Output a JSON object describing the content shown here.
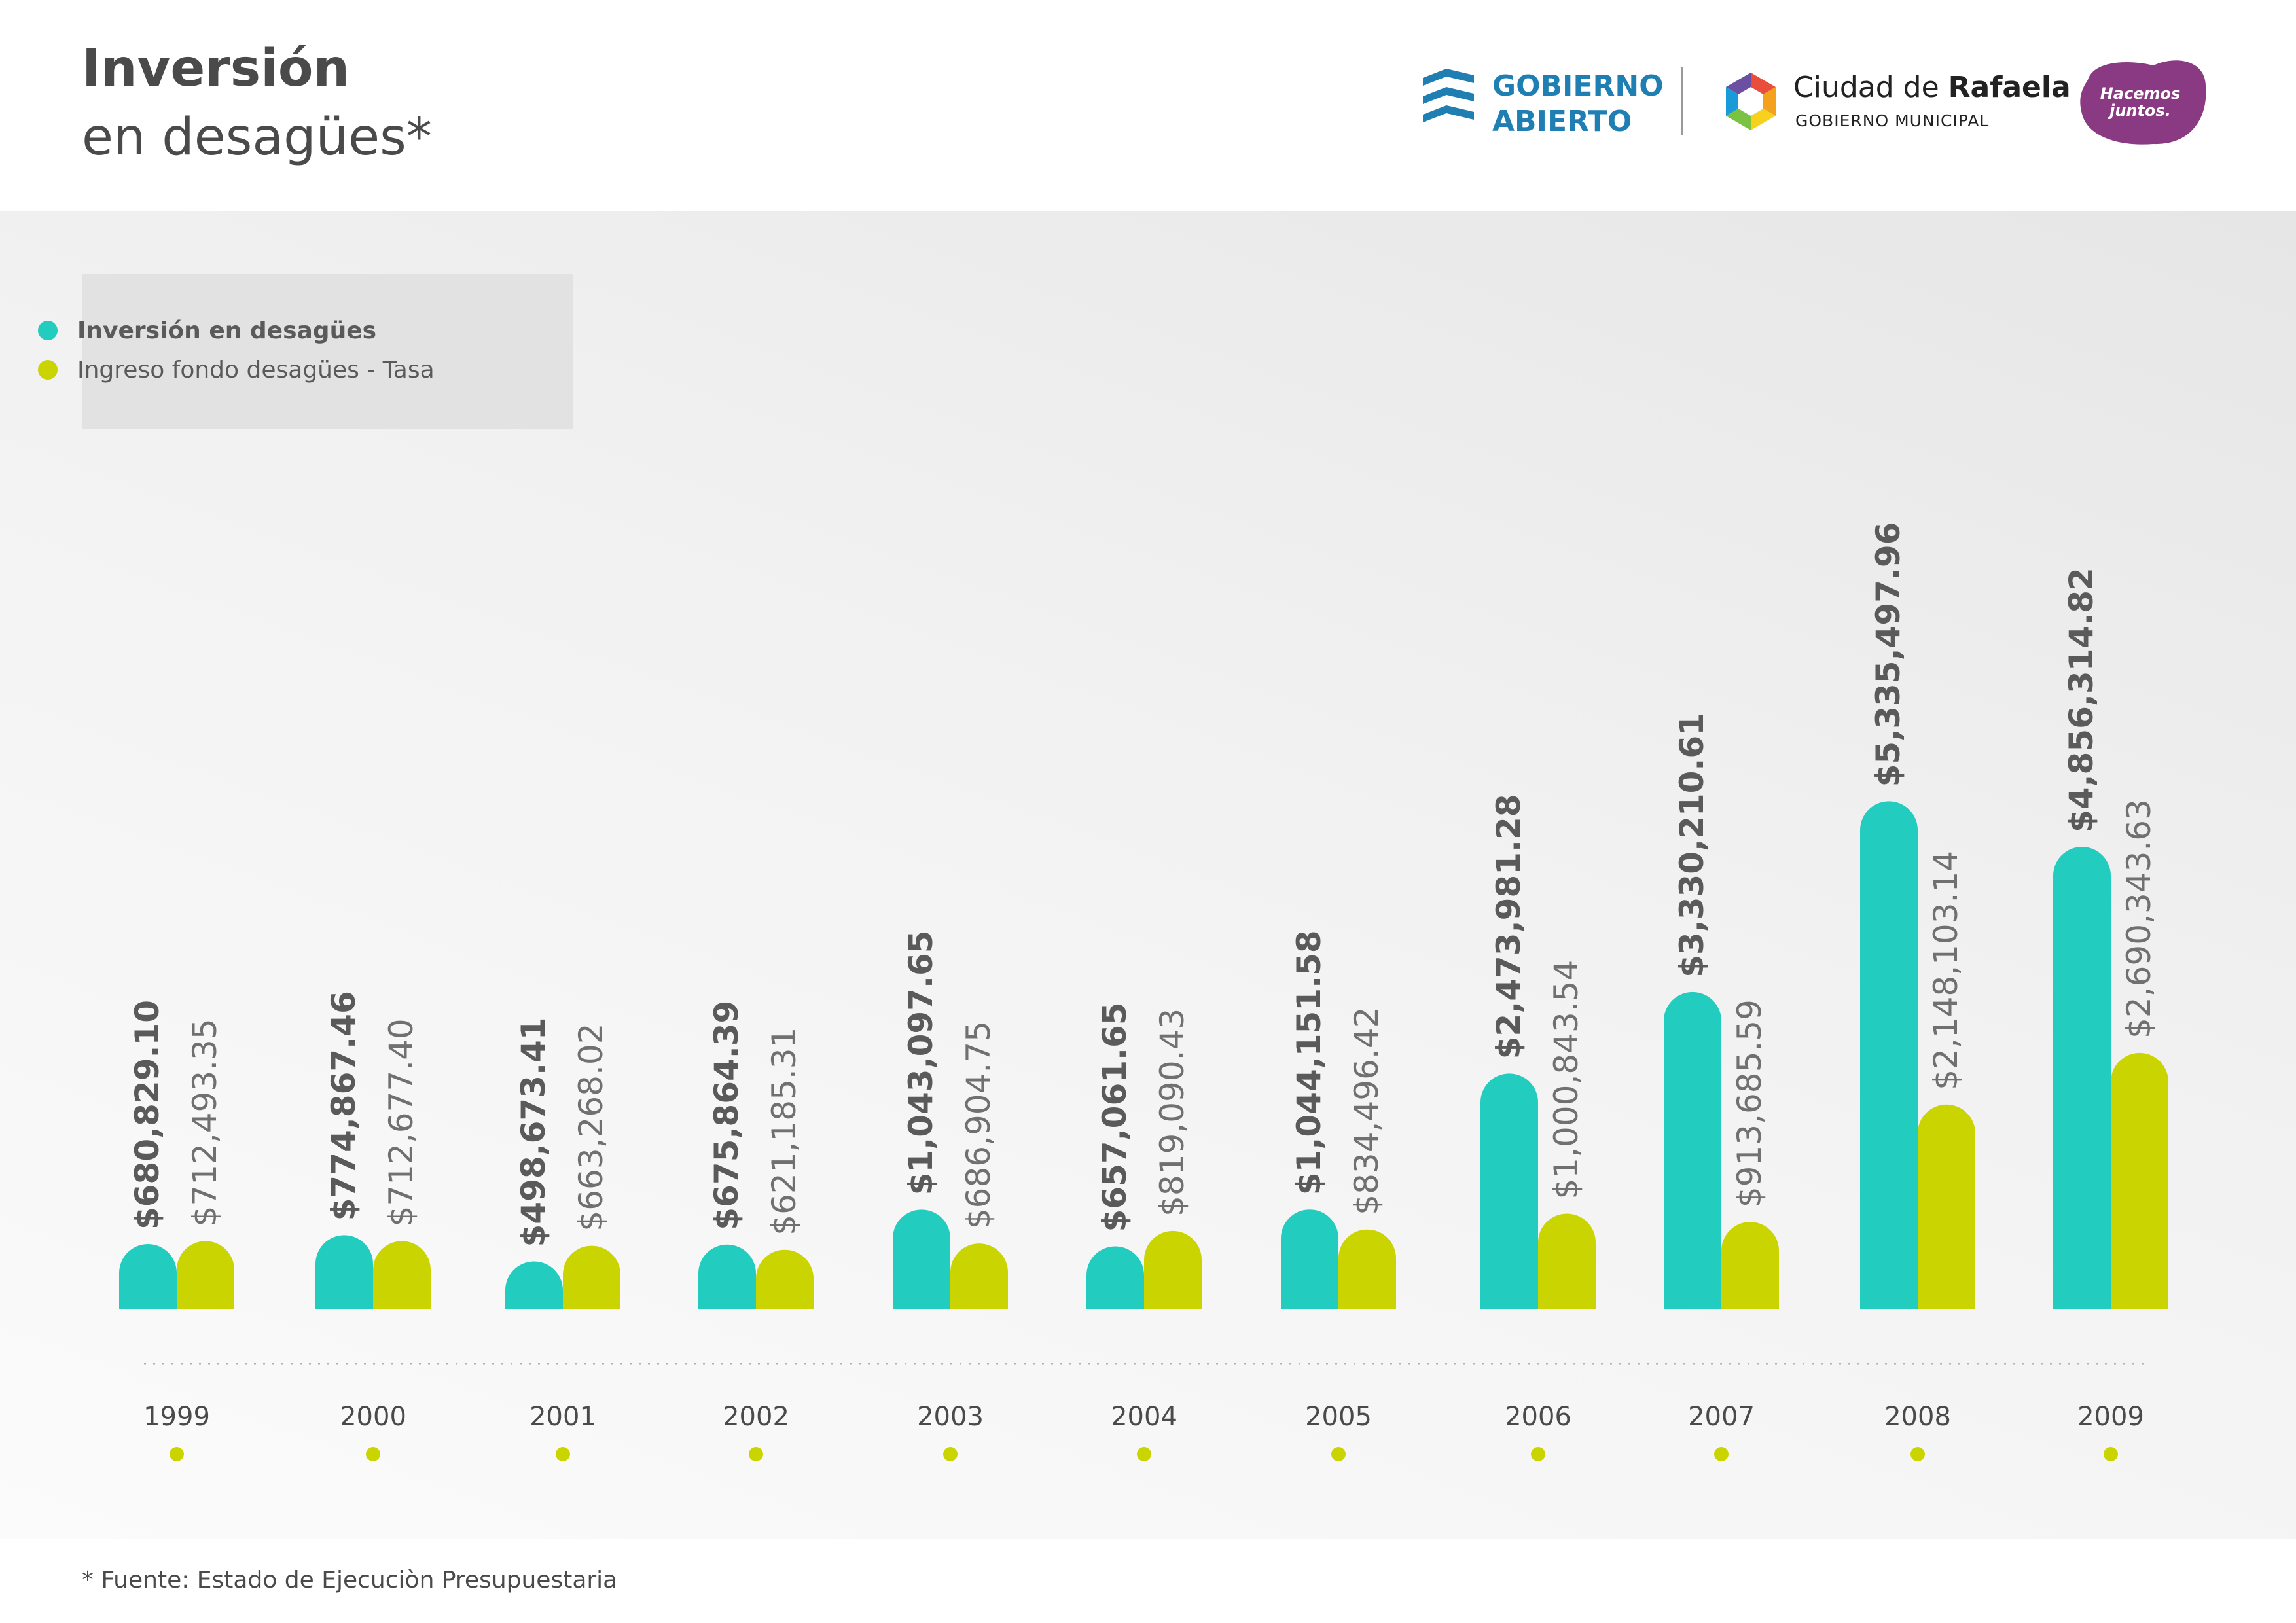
{
  "header": {
    "title_line1": "Inversión",
    "title_line2": "en desagües*"
  },
  "logos": {
    "gobierno_abierto": {
      "line1": "GOBIERNO",
      "line2": "ABIERTO",
      "icon": "stacked-chevrons-icon"
    },
    "ciudad": {
      "name_regular": "Ciudad de ",
      "name_bold": "Rafaela",
      "subtitle": "GOBIERNO MUNICIPAL",
      "icon": "hexagon-logo-icon"
    },
    "hacemos": {
      "line1": "Hacemos",
      "line2": "juntos."
    }
  },
  "colors": {
    "inversion": "#22ccbf",
    "ingreso": "#c9d400",
    "year_dot": "#c9d400",
    "brand_blue": "#1f7fb3",
    "brand_purple": "#8a3a82"
  },
  "legend": [
    {
      "label": "Inversión en desagües",
      "color": "#22ccbf"
    },
    {
      "label": "Ingreso fondo desagües - Tasa",
      "color": "#c9d400"
    }
  ],
  "footnote": "* Fuente: Estado de Ejecuciòn Presupuestaria",
  "chart_data": {
    "type": "bar",
    "title": "Inversión en desagües*",
    "categories": [
      "1999",
      "2000",
      "2001",
      "2002",
      "2003",
      "2004",
      "2005",
      "2006",
      "2007",
      "2008",
      "2009"
    ],
    "series": [
      {
        "name": "Inversión en desagües",
        "values": [
          680829.1,
          774867.46,
          498673.41,
          675864.39,
          1043097.65,
          657061.65,
          1044151.58,
          2473981.28,
          3330210.61,
          5335497.96,
          4856314.82
        ],
        "labels": [
          "$680,829.10",
          "$774,867.46",
          "$498,673.41",
          "$675,864.39",
          "$1,043,097.65",
          "$657,061.65",
          "$1,044,151.58",
          "$2,473,981.28",
          "$3,330,210.61",
          "$5,335,497.96",
          "$4,856,314.82"
        ]
      },
      {
        "name": "Ingreso fondo desagües - Tasa",
        "values": [
          712493.35,
          712677.4,
          663268.02,
          621185.31,
          686904.75,
          819090.43,
          834496.42,
          1000843.54,
          913685.59,
          2148103.14,
          2690343.63
        ],
        "labels": [
          "$712,493.35",
          "$712,677.40",
          "$663,268.02",
          "$621,185.31",
          "$686,904.75",
          "$819,090.43",
          "$834,496.42",
          "$1,000,843.54",
          "$913,685.59",
          "$2,148,103.14",
          "$2,690,343.63"
        ]
      }
    ],
    "ylim": [
      0,
      5400000
    ],
    "grid": false,
    "legend_position": "top-left"
  }
}
